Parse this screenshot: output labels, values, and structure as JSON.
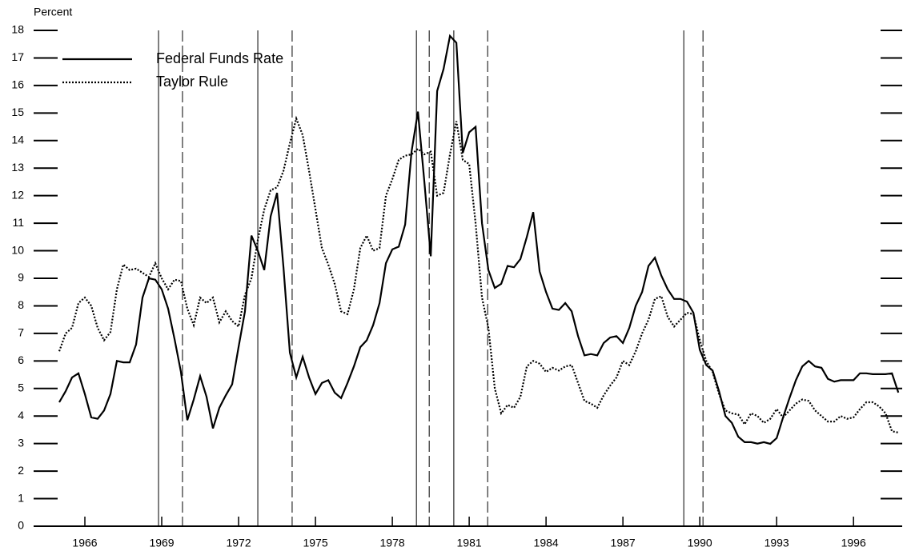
{
  "chart_data": {
    "type": "line",
    "y_label": "Percent",
    "x": [
      1965,
      1965.25,
      1965.5,
      1965.75,
      1966,
      1966.25,
      1966.5,
      1966.75,
      1967,
      1967.25,
      1967.5,
      1967.75,
      1968,
      1968.25,
      1968.5,
      1968.75,
      1969,
      1969.25,
      1969.5,
      1969.75,
      1970,
      1970.25,
      1970.5,
      1970.75,
      1971,
      1971.25,
      1971.5,
      1971.75,
      1972,
      1972.25,
      1972.5,
      1972.75,
      1973,
      1973.25,
      1973.5,
      1973.75,
      1974,
      1974.25,
      1974.5,
      1974.75,
      1975,
      1975.25,
      1975.5,
      1975.75,
      1976,
      1976.25,
      1976.5,
      1976.75,
      1977,
      1977.25,
      1977.5,
      1977.75,
      1978,
      1978.25,
      1978.5,
      1978.75,
      1979,
      1979.25,
      1979.5,
      1979.75,
      1980,
      1980.25,
      1980.5,
      1980.75,
      1981,
      1981.25,
      1981.5,
      1981.75,
      1982,
      1982.25,
      1982.5,
      1982.75,
      1983,
      1983.25,
      1983.5,
      1983.75,
      1984,
      1984.25,
      1984.5,
      1984.75,
      1985,
      1985.25,
      1985.5,
      1985.75,
      1986,
      1986.25,
      1986.5,
      1986.75,
      1987,
      1987.25,
      1987.5,
      1987.75,
      1988,
      1988.25,
      1988.5,
      1988.75,
      1989,
      1989.25,
      1989.5,
      1989.75,
      1990,
      1990.25,
      1990.5,
      1990.75,
      1991,
      1991.25,
      1991.5,
      1991.75,
      1992,
      1992.25,
      1992.5,
      1992.75,
      1993,
      1993.25,
      1993.5,
      1993.75,
      1994,
      1994.25,
      1994.5,
      1994.75,
      1995,
      1995.25,
      1995.5,
      1995.75,
      1996,
      1996.25,
      1996.5,
      1996.75,
      1997,
      1997.25,
      1997.5,
      1997.75
    ],
    "series": [
      {
        "name": "Federal Funds Rate",
        "color": "#000000",
        "dash": "solid",
        "values": [
          4.5,
          4.9,
          5.4,
          5.55,
          4.8,
          3.95,
          3.9,
          4.2,
          4.8,
          6.0,
          5.95,
          5.95,
          6.6,
          8.3,
          9.0,
          8.95,
          8.6,
          7.9,
          6.8,
          5.6,
          3.85,
          4.6,
          5.45,
          4.7,
          3.55,
          4.3,
          4.75,
          5.15,
          6.5,
          7.8,
          10.55,
          10.0,
          9.3,
          11.25,
          12.1,
          9.4,
          6.3,
          5.4,
          6.15,
          5.4,
          4.8,
          5.2,
          5.3,
          4.85,
          4.65,
          5.2,
          5.8,
          6.5,
          6.75,
          7.3,
          8.1,
          9.55,
          10.05,
          10.15,
          10.95,
          13.6,
          15.05,
          12.5,
          9.8,
          15.8,
          16.6,
          17.8,
          17.55,
          13.55,
          14.3,
          14.5,
          11.0,
          9.3,
          8.65,
          8.8,
          9.45,
          9.4,
          9.7,
          10.5,
          11.4,
          9.25,
          8.5,
          7.9,
          7.85,
          8.1,
          7.8,
          6.9,
          6.2,
          6.25,
          6.2,
          6.65,
          6.85,
          6.9,
          6.65,
          7.2,
          8.0,
          8.5,
          9.45,
          9.75,
          9.1,
          8.6,
          8.25,
          8.25,
          8.15,
          7.75,
          6.4,
          5.85,
          5.65,
          4.9,
          4.0,
          3.75,
          3.25,
          3.05,
          3.05,
          3.0,
          3.05,
          2.99,
          3.2,
          3.95,
          4.65,
          5.3,
          5.8,
          6.0,
          5.8,
          5.75,
          5.35,
          5.25,
          5.3,
          5.3,
          5.3,
          5.55,
          5.55,
          5.52,
          5.52,
          5.52,
          5.55,
          4.85
        ]
      },
      {
        "name": "Taylor Rule",
        "color": "#000000",
        "dash": "dotted",
        "values": [
          6.35,
          7.0,
          7.2,
          8.1,
          8.3,
          8.0,
          7.2,
          6.75,
          7.05,
          8.6,
          9.5,
          9.3,
          9.35,
          9.2,
          9.05,
          9.55,
          9.0,
          8.6,
          8.95,
          8.9,
          7.9,
          7.3,
          8.3,
          8.1,
          8.3,
          7.4,
          7.8,
          7.45,
          7.25,
          8.4,
          9.0,
          10.4,
          11.5,
          12.2,
          12.3,
          12.9,
          13.9,
          14.8,
          14.2,
          12.9,
          11.5,
          10.1,
          9.5,
          8.8,
          7.8,
          7.7,
          8.6,
          10.1,
          10.55,
          10.0,
          10.1,
          12.0,
          12.6,
          13.3,
          13.45,
          13.5,
          13.7,
          13.5,
          13.6,
          12.0,
          12.1,
          13.5,
          14.7,
          13.3,
          13.15,
          11.0,
          8.3,
          7.2,
          5.0,
          4.1,
          4.4,
          4.3,
          4.7,
          5.8,
          6.0,
          5.9,
          5.6,
          5.75,
          5.65,
          5.8,
          5.85,
          5.2,
          4.55,
          4.45,
          4.3,
          4.75,
          5.1,
          5.4,
          6.0,
          5.85,
          6.35,
          7.0,
          7.5,
          8.25,
          8.35,
          7.6,
          7.25,
          7.5,
          7.75,
          7.7,
          6.75,
          6.0,
          5.6,
          4.8,
          4.2,
          4.1,
          4.05,
          3.7,
          4.1,
          4.0,
          3.75,
          3.9,
          4.25,
          3.95,
          4.2,
          4.45,
          4.6,
          4.55,
          4.2,
          4.0,
          3.8,
          3.8,
          4.0,
          3.9,
          3.95,
          4.25,
          4.5,
          4.5,
          4.35,
          4.1,
          3.45,
          3.4
        ]
      }
    ],
    "vlines_solid": [
      1968.875,
      1972.75,
      1978.94,
      1980.4,
      1989.375
    ],
    "vlines_dashed": [
      1969.81,
      1974.09,
      1979.44,
      1981.72,
      1990.125
    ],
    "xlim": [
      1964,
      1997.9
    ],
    "xticks": [
      1966,
      1969,
      1972,
      1975,
      1978,
      1981,
      1984,
      1987,
      1990,
      1993,
      1996
    ],
    "ylim": [
      0,
      18
    ],
    "yticks": [
      0,
      1,
      2,
      3,
      4,
      5,
      6,
      7,
      8,
      9,
      10,
      11,
      12,
      13,
      14,
      15,
      16,
      17,
      18
    ],
    "legend": "top-left"
  }
}
